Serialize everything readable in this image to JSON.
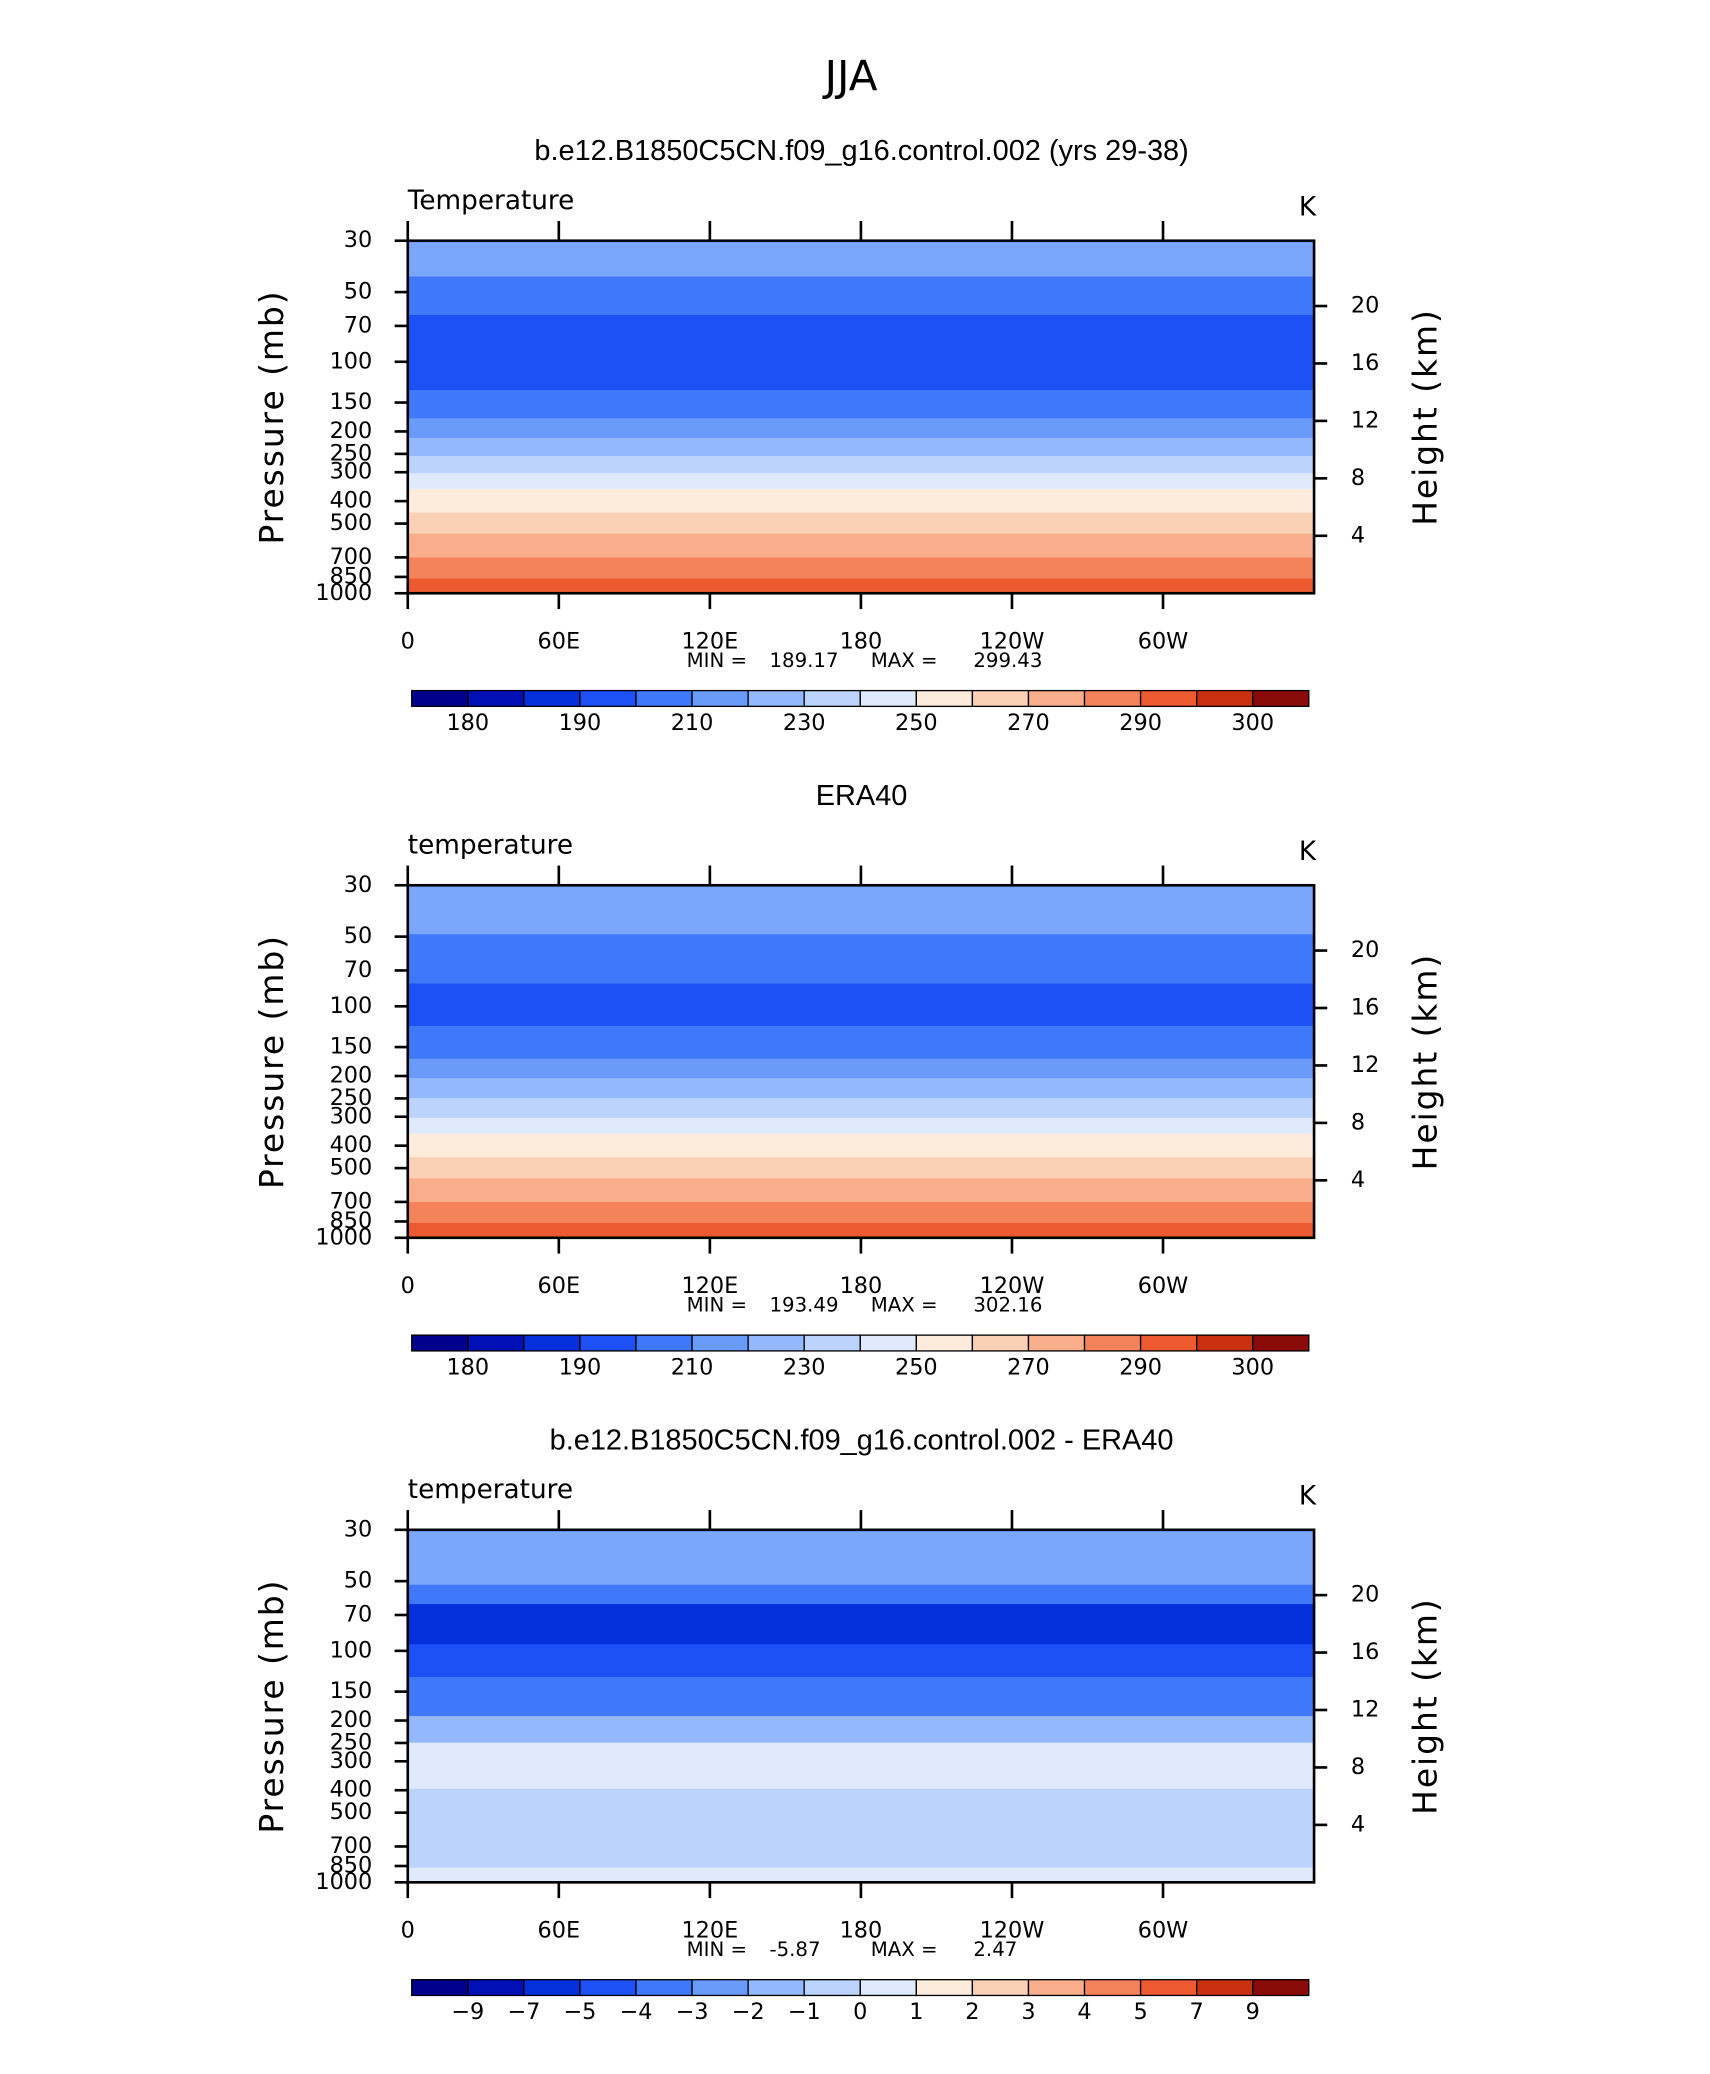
{
  "title": "JJA",
  "chart_data": [
    {
      "type": "contour",
      "title": "b.e12.B1850C5CN.f09_g16.control.002 (yrs 29-38)",
      "subtitle": "Temperature",
      "units": "K",
      "ylabel": "Pressure (mb)",
      "y2label": "Height (km)",
      "xlim": [
        0,
        360
      ],
      "xticks": [
        0,
        {
          "value": 60,
          "label": "60E"
        },
        {
          "value": 120,
          "label": "120E"
        },
        180,
        {
          "value": 240,
          "label": "120W"
        },
        {
          "value": 300,
          "label": "60W"
        }
      ],
      "ylim": [
        1000,
        30
      ],
      "yscale": "log",
      "yticks": [
        30,
        50,
        70,
        100,
        150,
        200,
        250,
        300,
        400,
        500,
        700,
        850,
        1000
      ],
      "y2ticks": [
        4,
        8,
        12,
        16,
        20
      ],
      "min_label": "MIN =",
      "min": 189.17,
      "max_label": "MAX =",
      "max": 299.43,
      "bands": {
        "pressure": [
          30,
          43,
          63,
          133,
          176,
          214,
          256,
          304,
          356,
          450,
          555,
          703,
          866,
          1000
        ],
        "colors": [
          "#7aa6fb",
          "#3f78f8",
          "#1d50f5",
          "#3f78f8",
          "#6b9bfa",
          "#93b8fc",
          "#bcd3fd",
          "#dfeafe",
          "#fdebdb",
          "#fbd1b6",
          "#f8ae8a",
          "#f4835c",
          "#ee5a2f"
        ]
      },
      "colorbar": {
        "colors": [
          "#00008c",
          "#0010b4",
          "#0530dc",
          "#1d50f5",
          "#3f78f8",
          "#6b9bfa",
          "#93b8fc",
          "#bcd3fd",
          "#dfeafe",
          "#fdebdb",
          "#fbd1b6",
          "#f8ae8a",
          "#f4835c",
          "#ee5a2f",
          "#c8300f",
          "#8b0a0a"
        ],
        "levels": [
          180,
          null,
          190,
          null,
          210,
          null,
          230,
          null,
          250,
          null,
          270,
          null,
          290,
          null,
          300
        ]
      }
    },
    {
      "type": "contour",
      "title": "ERA40",
      "subtitle": "temperature",
      "units": "K",
      "ylabel": "Pressure (mb)",
      "y2label": "Height (km)",
      "xlim": [
        0,
        360
      ],
      "xticks": [
        0,
        {
          "value": 60,
          "label": "60E"
        },
        {
          "value": 120,
          "label": "120E"
        },
        180,
        {
          "value": 240,
          "label": "120W"
        },
        {
          "value": 300,
          "label": "60W"
        }
      ],
      "ylim": [
        1000,
        30
      ],
      "yscale": "log",
      "yticks": [
        30,
        50,
        70,
        100,
        150,
        200,
        250,
        300,
        400,
        500,
        700,
        850,
        1000
      ],
      "y2ticks": [
        4,
        8,
        12,
        16,
        20
      ],
      "min_label": "MIN =",
      "min": 193.49,
      "max_label": "MAX =",
      "max": 302.16,
      "bands": {
        "pressure": [
          30,
          49,
          80,
          122,
          169,
          205,
          250,
          304,
          356,
          450,
          555,
          703,
          866,
          1000
        ],
        "colors": [
          "#7aa6fb",
          "#3f78f8",
          "#1d50f5",
          "#3f78f8",
          "#6b9bfa",
          "#93b8fc",
          "#bcd3fd",
          "#dfeafe",
          "#fdebdb",
          "#fbd1b6",
          "#f8ae8a",
          "#f4835c",
          "#ee5a2f"
        ]
      },
      "colorbar": {
        "colors": [
          "#00008c",
          "#0010b4",
          "#0530dc",
          "#1d50f5",
          "#3f78f8",
          "#6b9bfa",
          "#93b8fc",
          "#bcd3fd",
          "#dfeafe",
          "#fdebdb",
          "#fbd1b6",
          "#f8ae8a",
          "#f4835c",
          "#ee5a2f",
          "#c8300f",
          "#8b0a0a"
        ],
        "levels": [
          180,
          null,
          190,
          null,
          210,
          null,
          230,
          null,
          250,
          null,
          270,
          null,
          290,
          null,
          300
        ]
      }
    },
    {
      "type": "contour",
      "title": "b.e12.B1850C5CN.f09_g16.control.002 - ERA40",
      "subtitle": "temperature",
      "units": "K",
      "ylabel": "Pressure (mb)",
      "y2label": "Height (km)",
      "xlim": [
        0,
        360
      ],
      "xticks": [
        0,
        {
          "value": 60,
          "label": "60E"
        },
        {
          "value": 120,
          "label": "120E"
        },
        180,
        {
          "value": 240,
          "label": "120W"
        },
        {
          "value": 300,
          "label": "60W"
        }
      ],
      "ylim": [
        1000,
        30
      ],
      "yscale": "log",
      "yticks": [
        30,
        50,
        70,
        100,
        150,
        200,
        250,
        300,
        400,
        500,
        700,
        850,
        1000
      ],
      "y2ticks": [
        4,
        8,
        12,
        16,
        20
      ],
      "min_label": "MIN =",
      "min": -5.87,
      "max_label": "MAX =",
      "max": 2.47,
      "bands": {
        "pressure": [
          30,
          52,
          63,
          94,
          130,
          192,
          250,
          396,
          866,
          1000
        ],
        "colors": [
          "#7aa6fb",
          "#3f78f8",
          "#0530dc",
          "#1d50f5",
          "#3f78f8",
          "#93b8fc",
          "#dfeafe",
          "#bcd3fd",
          "#dfeafe"
        ]
      },
      "colorbar": {
        "colors": [
          "#00008c",
          "#0010b4",
          "#0530dc",
          "#1d50f5",
          "#3f78f8",
          "#6b9bfa",
          "#93b8fc",
          "#bcd3fd",
          "#dfeafe",
          "#fdebdb",
          "#fbd1b6",
          "#f8ae8a",
          "#f4835c",
          "#ee5a2f",
          "#c8300f",
          "#8b0a0a"
        ],
        "levels": [
          {
            "value": -9,
            "label": "−9"
          },
          {
            "value": -7,
            "label": "−7"
          },
          {
            "value": -5,
            "label": "−5"
          },
          {
            "value": -4,
            "label": "−4"
          },
          {
            "value": -3,
            "label": "−3"
          },
          {
            "value": -2,
            "label": "−2"
          },
          {
            "value": -1,
            "label": "−1"
          },
          0,
          1,
          2,
          3,
          4,
          5,
          7,
          9
        ]
      }
    }
  ]
}
